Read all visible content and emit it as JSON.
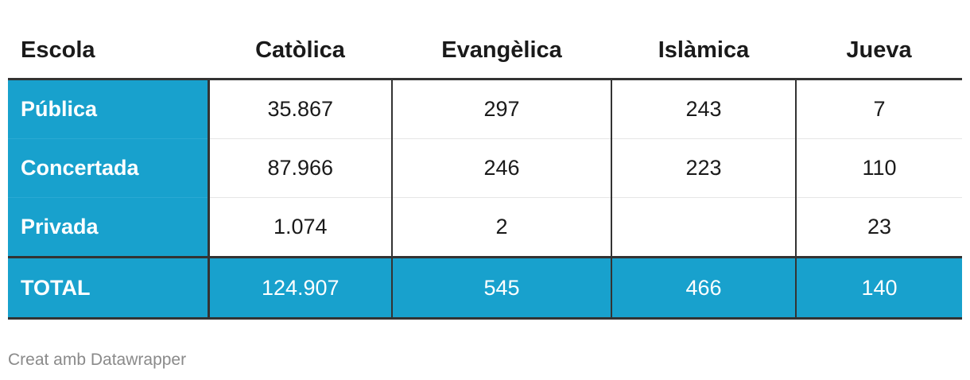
{
  "chart_data": {
    "type": "table",
    "columns": [
      "Escola",
      "Catòlica",
      "Evangèlica",
      "Islàmica",
      "Jueva"
    ],
    "rows": [
      {
        "label": "Pública",
        "values": [
          "35.867",
          "297",
          "243",
          "7"
        ]
      },
      {
        "label": "Concertada",
        "values": [
          "87.966",
          "246",
          "223",
          "110"
        ]
      },
      {
        "label": "Privada",
        "values": [
          "1.074",
          "2",
          "",
          "23"
        ]
      }
    ],
    "total": {
      "label": "TOTAL",
      "values": [
        "124.907",
        "545",
        "466",
        "140"
      ]
    },
    "credit": "Creat amb Datawrapper"
  },
  "colors": {
    "accent": "#18a1cd",
    "rule": "#333333",
    "credit_text": "#8a8a8a"
  }
}
